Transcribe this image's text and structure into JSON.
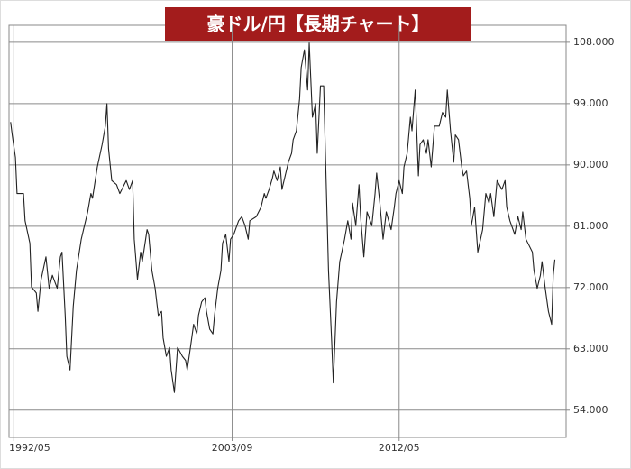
{
  "chart_data": {
    "type": "line",
    "title": "豪ドル/円【長期チャート】",
    "x": [
      "1992/03",
      "1992/04",
      "1992/06",
      "1992/07",
      "1992/11",
      "1992/12",
      "1993/03",
      "1993/04",
      "1993/07",
      "1993/08",
      "1993/10",
      "1994/01",
      "1994/03",
      "1994/05",
      "1994/08",
      "1994/10",
      "1994/11",
      "1995/01",
      "1995/02",
      "1995/04",
      "1995/06",
      "1995/08",
      "1995/11",
      "1996/03",
      "1996/05",
      "1996/06",
      "1996/09",
      "1996/12",
      "1997/02",
      "1997/03",
      "1997/04",
      "1997/06",
      "1997/09",
      "1997/11",
      "1998/03",
      "1998/05",
      "1998/07",
      "1998/08",
      "1998/10",
      "1998/12",
      "1999/01",
      "1999/04",
      "1999/05",
      "1999/07",
      "1999/09",
      "1999/11",
      "2000/01",
      "2000/02",
      "2000/04",
      "2000/06",
      "2000/07",
      "2000/09",
      "2000/11",
      "2001/02",
      "2001/04",
      "2001/05",
      "2001/07",
      "2001/09",
      "2001/11",
      "2001/12",
      "2002/02",
      "2002/04",
      "2002/05",
      "2002/07",
      "2002/09",
      "2002/10",
      "2002/12",
      "2003/02",
      "2003/03",
      "2003/05",
      "2003/07",
      "2003/08",
      "2003/10",
      "2004/01",
      "2004/03",
      "2004/05",
      "2004/07",
      "2004/08",
      "2004/12",
      "2005/03",
      "2005/05",
      "2005/06",
      "2005/08",
      "2005/10",
      "2005/11",
      "2006/01",
      "2006/03",
      "2006/04",
      "2006/06",
      "2006/08",
      "2006/10",
      "2006/11",
      "2007/01",
      "2007/03",
      "2007/04",
      "2007/06",
      "2007/08",
      "2007/09",
      "2007/11",
      "2008/01",
      "2008/02",
      "2008/04",
      "2008/06",
      "2008/07",
      "2008/09",
      "2008/11",
      "2008/12",
      "2009/02",
      "2009/04",
      "2009/07",
      "2009/09",
      "2009/11",
      "2009/12",
      "2010/02",
      "2010/04",
      "2010/05",
      "2010/07",
      "2010/09",
      "2010/12",
      "2011/02",
      "2011/03",
      "2011/05",
      "2011/07",
      "2011/09",
      "2011/12",
      "2012/02",
      "2012/03",
      "2012/05",
      "2012/07",
      "2012/08",
      "2012/10",
      "2012/12",
      "2013/01",
      "2013/03",
      "2013/05",
      "2013/06",
      "2013/08",
      "2013/10",
      "2013/11",
      "2014/01",
      "2014/03",
      "2014/06",
      "2014/08",
      "2014/10",
      "2014/11",
      "2015/01",
      "2015/03",
      "2015/04",
      "2015/06",
      "2015/08",
      "2015/09",
      "2015/11",
      "2016/01",
      "2016/02",
      "2016/04",
      "2016/06",
      "2016/09",
      "2016/11",
      "2017/01",
      "2017/02",
      "2017/04",
      "2017/06",
      "2017/09",
      "2017/11",
      "2017/12",
      "2018/02",
      "2018/05",
      "2018/07",
      "2018/09",
      "2018/10",
      "2018/12",
      "2019/04",
      "2019/05",
      "2019/07",
      "2019/09",
      "2019/10",
      "2019/12",
      "2020/02",
      "2020/04",
      "2020/05",
      "2020/06"
    ],
    "series": [
      {
        "color": "#222222",
        "values": [
          96.3,
          94.4,
          91.1,
          85.8,
          85.8,
          81.8,
          78.5,
          72.1,
          71.2,
          68.5,
          73.2,
          76.5,
          71.9,
          73.8,
          71.9,
          76.5,
          77.2,
          67.9,
          61.9,
          59.9,
          69.2,
          74.5,
          79.1,
          83.1,
          85.8,
          85.1,
          89.7,
          93.0,
          95.7,
          99.0,
          92.4,
          87.7,
          87.1,
          85.8,
          87.7,
          86.4,
          87.7,
          79.1,
          73.2,
          77.2,
          75.8,
          80.5,
          79.8,
          74.5,
          71.9,
          67.9,
          68.5,
          64.6,
          61.9,
          63.2,
          59.9,
          56.6,
          63.2,
          61.9,
          61.3,
          59.9,
          63.2,
          66.6,
          65.2,
          67.9,
          69.9,
          70.5,
          68.5,
          65.9,
          65.2,
          67.9,
          71.9,
          74.5,
          78.5,
          79.8,
          75.8,
          79.1,
          79.8,
          81.8,
          82.4,
          81.1,
          79.1,
          81.8,
          82.4,
          83.8,
          85.8,
          85.1,
          86.4,
          88.0,
          89.1,
          87.7,
          89.7,
          86.4,
          88.4,
          90.4,
          91.7,
          93.7,
          95.0,
          99.7,
          104.3,
          106.9,
          101.0,
          107.9,
          97.0,
          99.0,
          91.7,
          101.6,
          101.6,
          92.4,
          74.5,
          63.9,
          58.0,
          69.9,
          75.8,
          79.1,
          81.8,
          79.1,
          84.4,
          81.1,
          87.1,
          82.4,
          76.5,
          83.1,
          81.1,
          85.8,
          88.8,
          84.4,
          79.1,
          83.1,
          80.5,
          83.8,
          85.8,
          87.7,
          85.8,
          89.7,
          91.7,
          97.0,
          95.0,
          101.0,
          88.4,
          93.0,
          93.7,
          91.7,
          93.7,
          89.7,
          95.7,
          95.7,
          97.7,
          97.0,
          101.0,
          95.0,
          90.4,
          94.4,
          93.7,
          89.7,
          88.4,
          89.1,
          85.1,
          81.1,
          83.8,
          77.2,
          80.5,
          85.8,
          84.4,
          85.8,
          82.4,
          87.7,
          86.4,
          87.7,
          83.8,
          81.8,
          79.8,
          82.4,
          80.5,
          83.1,
          79.1,
          77.2,
          74.5,
          71.9,
          73.8,
          75.8,
          71.9,
          68.5,
          66.6,
          73.8,
          76.1
        ]
      }
    ],
    "xlim": [
      "1992/02",
      "2021/01"
    ],
    "xticks": [
      "1992/05",
      "2003/09",
      "2012/05"
    ],
    "ylim": [
      50,
      110.5
    ],
    "yticks": [
      {
        "value": 54,
        "label": "54.000"
      },
      {
        "value": 63,
        "label": "63.000"
      },
      {
        "value": 72,
        "label": "72.000"
      },
      {
        "value": 81,
        "label": "81.000"
      },
      {
        "value": 90,
        "label": "90.000"
      },
      {
        "value": 99,
        "label": "99.000"
      },
      {
        "value": 108,
        "label": "108.000"
      }
    ],
    "grid": true
  }
}
